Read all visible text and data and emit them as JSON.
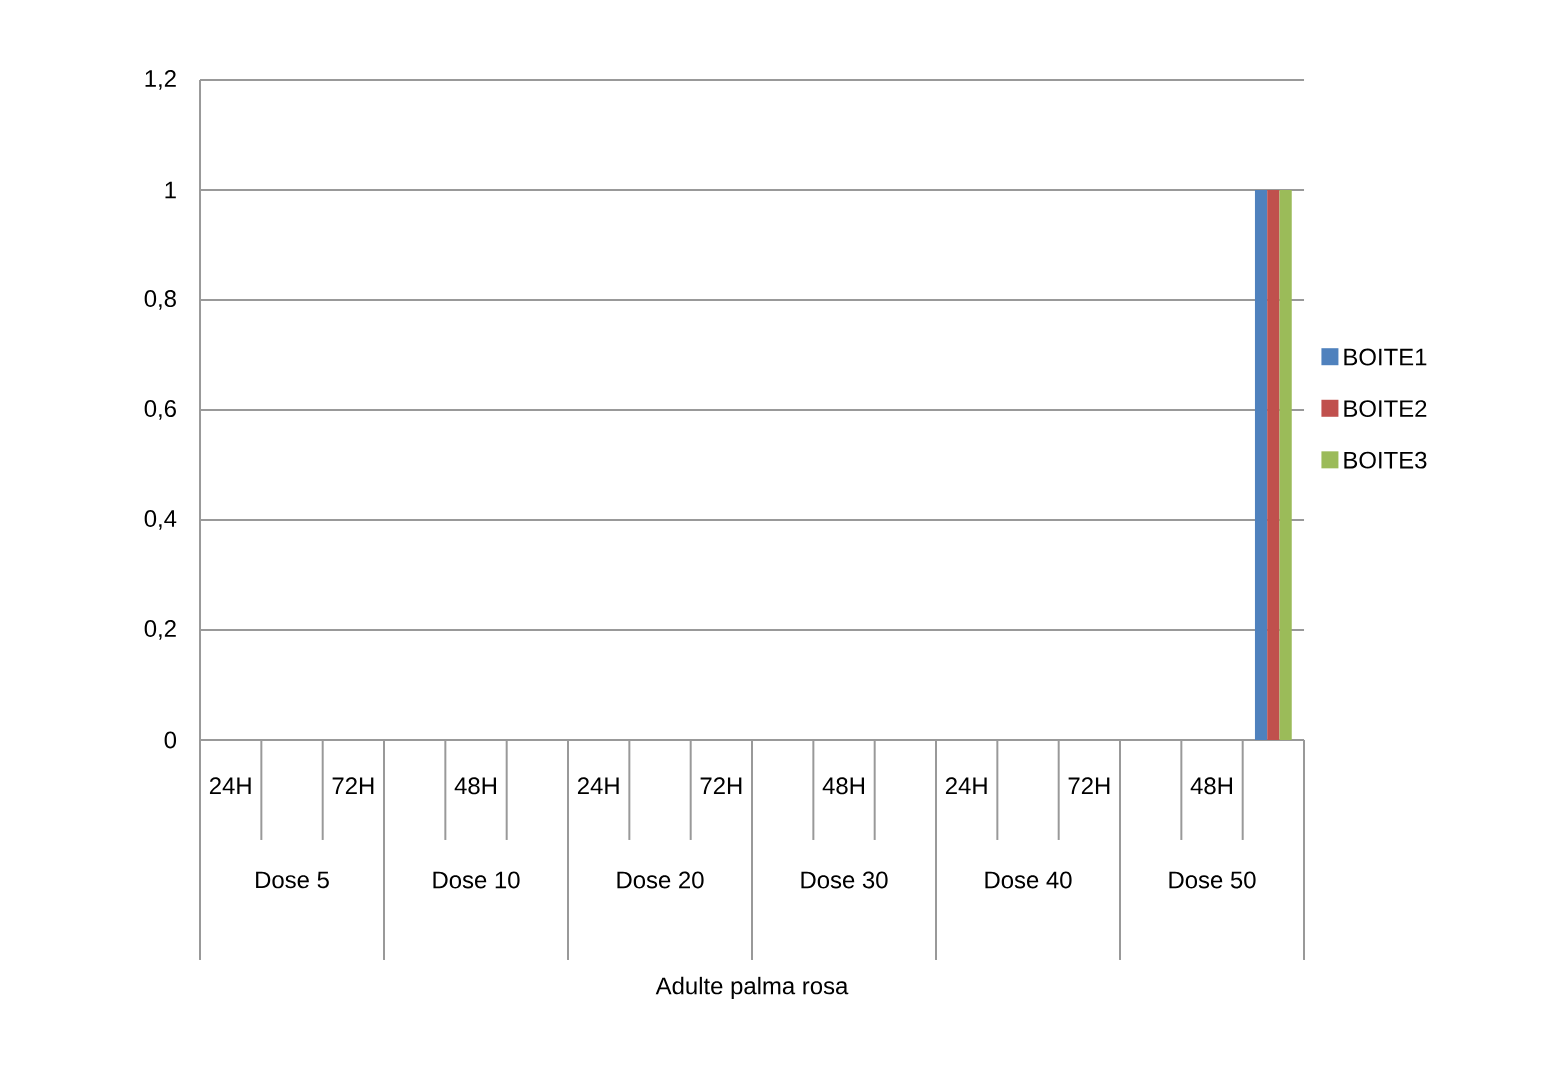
{
  "chart_data": {
    "type": "bar",
    "categories": [
      "24H",
      null,
      "72H",
      null,
      "48H",
      null,
      "24H",
      null,
      "72H",
      null,
      "48H",
      null,
      "24H",
      null,
      "72H",
      null,
      "48H",
      null
    ],
    "series": [
      {
        "name": "BOITE1",
        "color": "#4f81bd",
        "values": [
          0,
          0,
          0,
          0,
          0,
          0,
          0,
          0,
          0,
          0,
          0,
          0,
          0,
          0,
          0,
          0,
          0,
          1
        ]
      },
      {
        "name": "BOITE2",
        "color": "#c0504d",
        "values": [
          0,
          0,
          0,
          0,
          0,
          0,
          0,
          0,
          0,
          0,
          0,
          0,
          0,
          0,
          0,
          0,
          0,
          1
        ]
      },
      {
        "name": "BOITE3",
        "color": "#9bbb59",
        "values": [
          0,
          0,
          0,
          0,
          0,
          0,
          0,
          0,
          0,
          0,
          0,
          0,
          0,
          0,
          0,
          0,
          0,
          1
        ]
      }
    ],
    "annotations": [
      "Dose 5",
      "Dose 10",
      "Dose 20",
      "Dose 30",
      "Dose 40",
      "Dose 50",
      "Adulte palma rosa"
    ],
    "ylim": [
      0,
      1.2
    ],
    "yticks": [
      {
        "value": 0,
        "label": "0"
      },
      {
        "value": 0.2,
        "label": "0,2"
      },
      {
        "value": 0.4,
        "label": "0,4"
      },
      {
        "value": 0.6,
        "label": "0,6"
      },
      {
        "value": 0.8,
        "label": "0,8"
      },
      {
        "value": 1,
        "label": "1"
      },
      {
        "value": 1.2,
        "label": "1,2"
      }
    ],
    "grid": "y",
    "legend": "right"
  }
}
